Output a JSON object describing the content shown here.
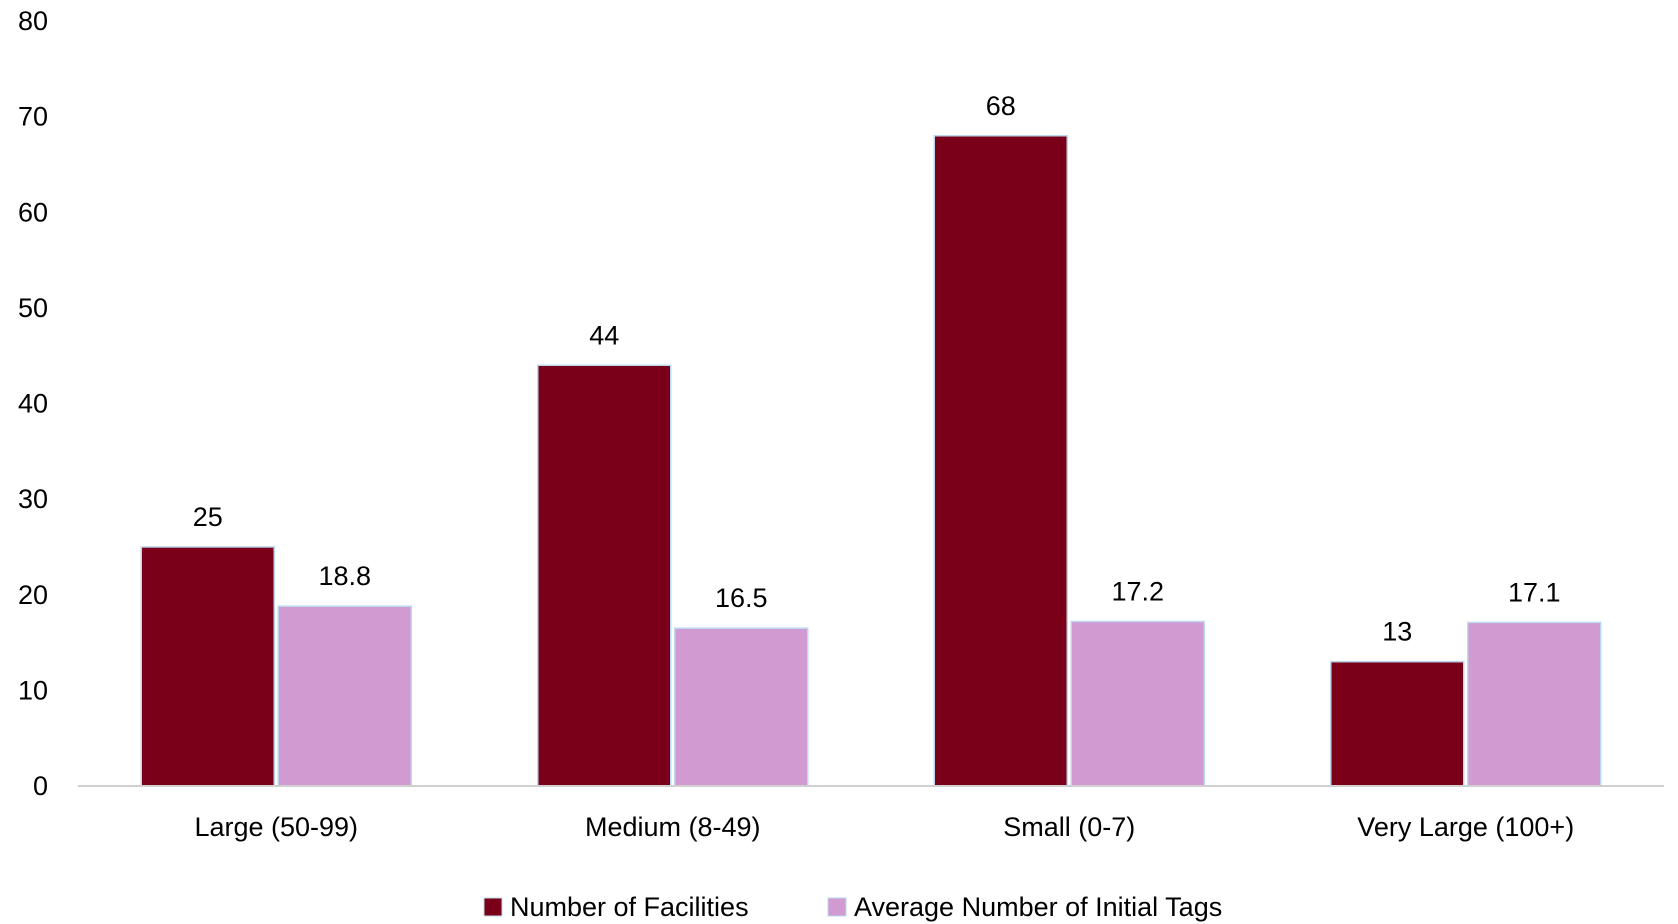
{
  "chart_data": {
    "type": "bar",
    "categories": [
      "Large (50-99)",
      "Medium (8-49)",
      "Small (0-7)",
      "Very Large (100+)"
    ],
    "series": [
      {
        "name": "Number of Facilities",
        "values": [
          25,
          44,
          68,
          13
        ],
        "labels": [
          "25",
          "44",
          "68",
          "13"
        ],
        "color": "#7a001a"
      },
      {
        "name": "Average Number of Initial Tags",
        "values": [
          18.8,
          16.5,
          17.2,
          17.1
        ],
        "labels": [
          "18.8",
          "16.5",
          "17.2",
          "17.1"
        ],
        "color": "#d19ad1"
      }
    ],
    "yticks": [
      "0",
      "10",
      "20",
      "30",
      "40",
      "50",
      "60",
      "70",
      "80"
    ],
    "ylim": [
      0,
      80
    ],
    "title": "",
    "xlabel": "",
    "ylabel": "",
    "grid": false,
    "legend_position": "bottom",
    "bar_edge_color": "#bcd8ee",
    "axis_color": "#d0d0d0"
  }
}
